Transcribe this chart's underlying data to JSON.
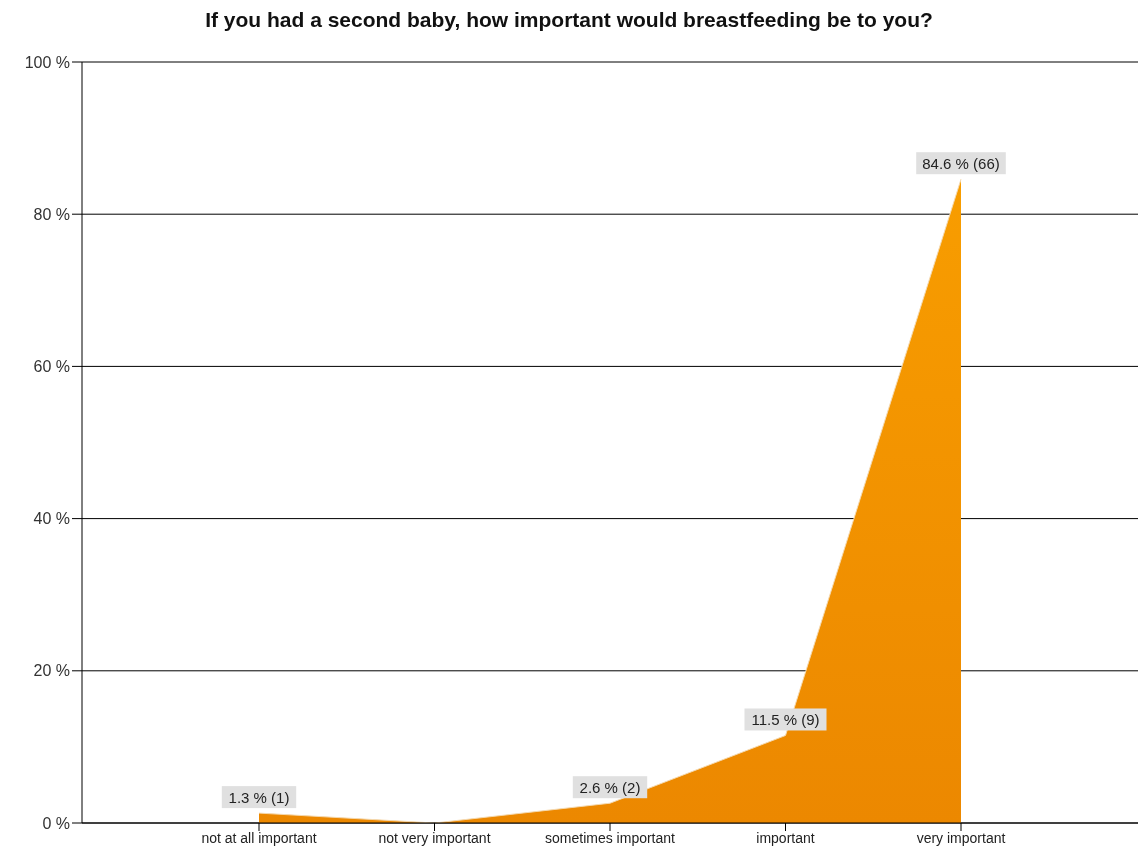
{
  "chart_data": {
    "type": "area",
    "title": "If you had a second baby, how important would breastfeeding be to you?",
    "categories": [
      "not at all important",
      "not very important",
      "sometimes important",
      "important",
      "very important"
    ],
    "values": [
      1.3,
      0,
      2.6,
      11.5,
      84.6
    ],
    "value_labels": [
      "1.3 % (1)",
      null,
      "2.6 % (2)",
      "11.5 % (9)",
      "84.6 % (66)"
    ],
    "color": "#ec8800",
    "ylim": [
      0,
      100
    ],
    "yticks": [
      {
        "value": 0,
        "label": "0 %"
      },
      {
        "value": 20,
        "label": "20 %"
      },
      {
        "value": 40,
        "label": "40 %"
      },
      {
        "value": 60,
        "label": "60 %"
      },
      {
        "value": 80,
        "label": "80 %"
      },
      {
        "value": 100,
        "label": "100 %"
      }
    ],
    "grid": "y"
  }
}
